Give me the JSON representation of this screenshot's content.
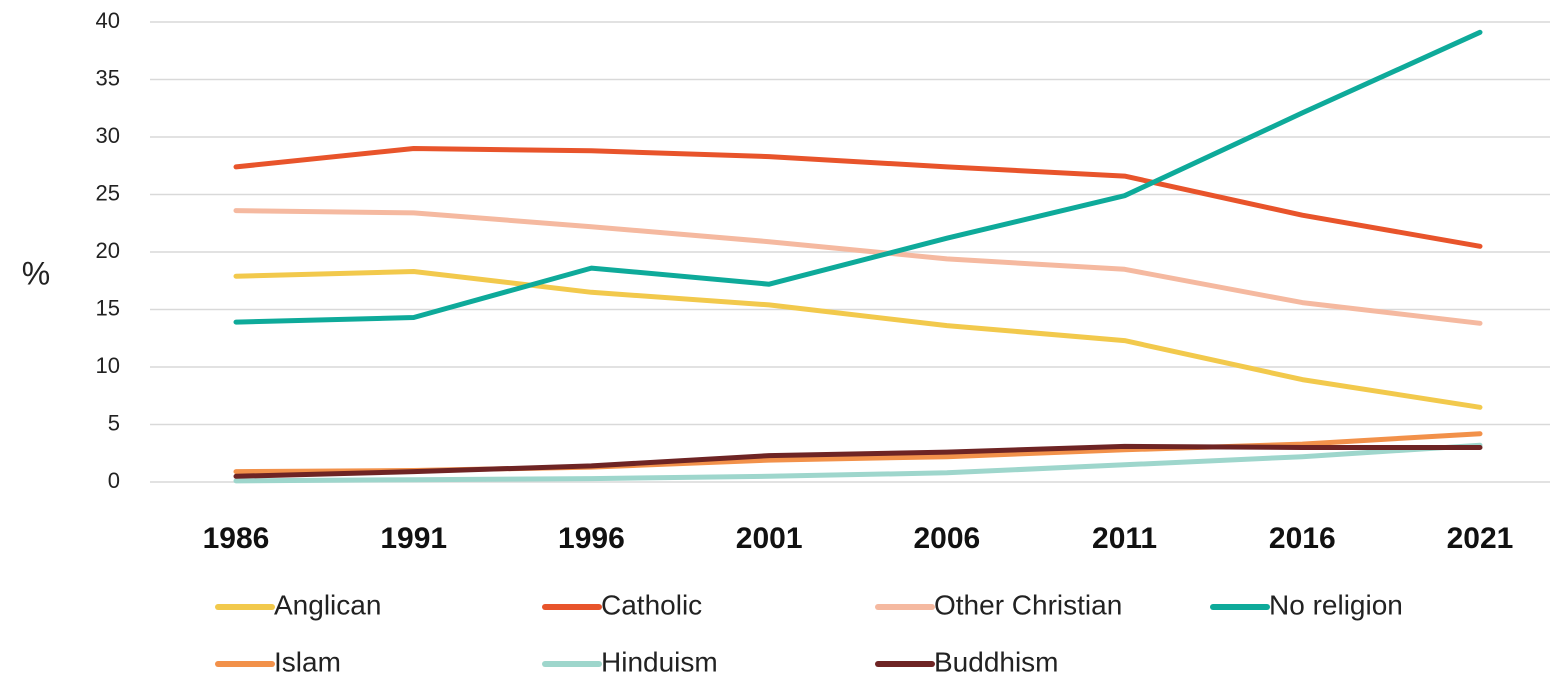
{
  "chart_data": {
    "type": "line",
    "ylabel": "%",
    "xlabel": "",
    "title": "",
    "ylim": [
      0,
      40
    ],
    "yticks": [
      0,
      5,
      10,
      15,
      20,
      25,
      30,
      35,
      40
    ],
    "categories": [
      "1986",
      "1991",
      "1996",
      "2001",
      "2006",
      "2011",
      "2016",
      "2021"
    ],
    "grid": true,
    "legend_position": "bottom",
    "series": [
      {
        "name": "Anglican",
        "color": "#F2C94C",
        "values": [
          17.9,
          18.3,
          16.5,
          15.4,
          13.6,
          12.3,
          8.9,
          6.5
        ]
      },
      {
        "name": "Catholic",
        "color": "#E8542B",
        "values": [
          27.4,
          29.0,
          28.8,
          28.3,
          27.4,
          26.6,
          23.2,
          20.5
        ]
      },
      {
        "name": "Other Christian",
        "color": "#F5B9A0",
        "values": [
          23.6,
          23.4,
          22.2,
          20.9,
          19.4,
          18.5,
          15.6,
          13.8
        ]
      },
      {
        "name": "No religion",
        "color": "#0EAA9A",
        "values": [
          13.9,
          14.3,
          18.6,
          17.2,
          21.2,
          24.9,
          32.1,
          39.1
        ]
      },
      {
        "name": "Islam",
        "color": "#F2914A",
        "values": [
          0.9,
          1.0,
          1.3,
          1.9,
          2.2,
          2.8,
          3.3,
          4.2
        ]
      },
      {
        "name": "Hinduism",
        "color": "#9ED6CC",
        "values": [
          0.1,
          0.2,
          0.3,
          0.5,
          0.8,
          1.5,
          2.2,
          3.2
        ]
      },
      {
        "name": "Buddhism",
        "color": "#6E2424",
        "values": [
          0.5,
          0.9,
          1.4,
          2.3,
          2.6,
          3.1,
          3.0,
          3.0
        ]
      }
    ]
  }
}
